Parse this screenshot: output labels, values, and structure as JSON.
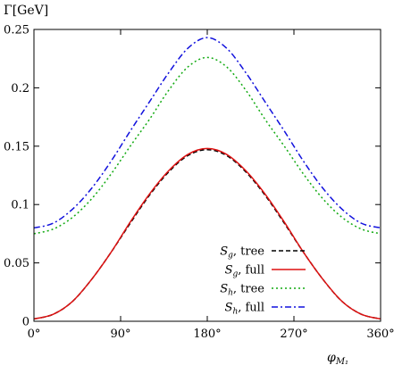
{
  "chart_data": {
    "type": "line",
    "ylabel": "Γ[GeV]",
    "xlabel": "φ",
    "xlabel_sub": "M₁",
    "xlim": [
      0,
      360
    ],
    "ylim": [
      0,
      0.25
    ],
    "x_ticks": [
      {
        "value": 0,
        "label": "0°"
      },
      {
        "value": 90,
        "label": "90°"
      },
      {
        "value": 180,
        "label": "180°"
      },
      {
        "value": 270,
        "label": "270°"
      },
      {
        "value": 360,
        "label": "360°"
      }
    ],
    "y_ticks": [
      {
        "value": 0,
        "label": "0"
      },
      {
        "value": 0.05,
        "label": "0.05"
      },
      {
        "value": 0.1,
        "label": "0.1"
      },
      {
        "value": 0.15,
        "label": "0.15"
      },
      {
        "value": 0.2,
        "label": "0.2"
      },
      {
        "value": 0.25,
        "label": "0.25"
      }
    ],
    "grid": false,
    "legend_position": "bottom-right",
    "x": [
      0,
      20,
      40,
      60,
      80,
      100,
      120,
      140,
      160,
      180,
      200,
      220,
      240,
      260,
      280,
      300,
      320,
      340,
      360
    ],
    "series": [
      {
        "name": "Sg, tree",
        "legend_main": "S",
        "legend_sub": "g",
        "legend_rest": ", tree",
        "color": "#000000",
        "dash": "dashed",
        "values": [
          0.002,
          0.006,
          0.017,
          0.036,
          0.059,
          0.084,
          0.108,
          0.128,
          0.142,
          0.147,
          0.142,
          0.128,
          0.108,
          0.084,
          0.059,
          0.036,
          0.017,
          0.006,
          0.002
        ]
      },
      {
        "name": "Sg, full",
        "legend_main": "S",
        "legend_sub": "g",
        "legend_rest": ", full",
        "color": "#dd1111",
        "dash": "solid",
        "values": [
          0.002,
          0.006,
          0.017,
          0.036,
          0.059,
          0.085,
          0.109,
          0.129,
          0.143,
          0.148,
          0.143,
          0.129,
          0.109,
          0.085,
          0.059,
          0.036,
          0.017,
          0.006,
          0.002
        ]
      },
      {
        "name": "Sh, tree",
        "legend_main": "S",
        "legend_sub": "h",
        "legend_rest": ", tree",
        "color": "#11aa11",
        "dash": "dotted",
        "values": [
          0.075,
          0.079,
          0.089,
          0.105,
          0.126,
          0.15,
          0.173,
          0.198,
          0.218,
          0.226,
          0.218,
          0.198,
          0.173,
          0.15,
          0.126,
          0.105,
          0.089,
          0.079,
          0.075
        ]
      },
      {
        "name": "Sh, full",
        "legend_main": "S",
        "legend_sub": "h",
        "legend_rest": ", full",
        "color": "#1111dd",
        "dash": "dashdot",
        "values": [
          0.08,
          0.084,
          0.096,
          0.114,
          0.137,
          0.163,
          0.188,
          0.213,
          0.234,
          0.243,
          0.234,
          0.213,
          0.188,
          0.163,
          0.137,
          0.114,
          0.096,
          0.084,
          0.08
        ]
      }
    ]
  }
}
